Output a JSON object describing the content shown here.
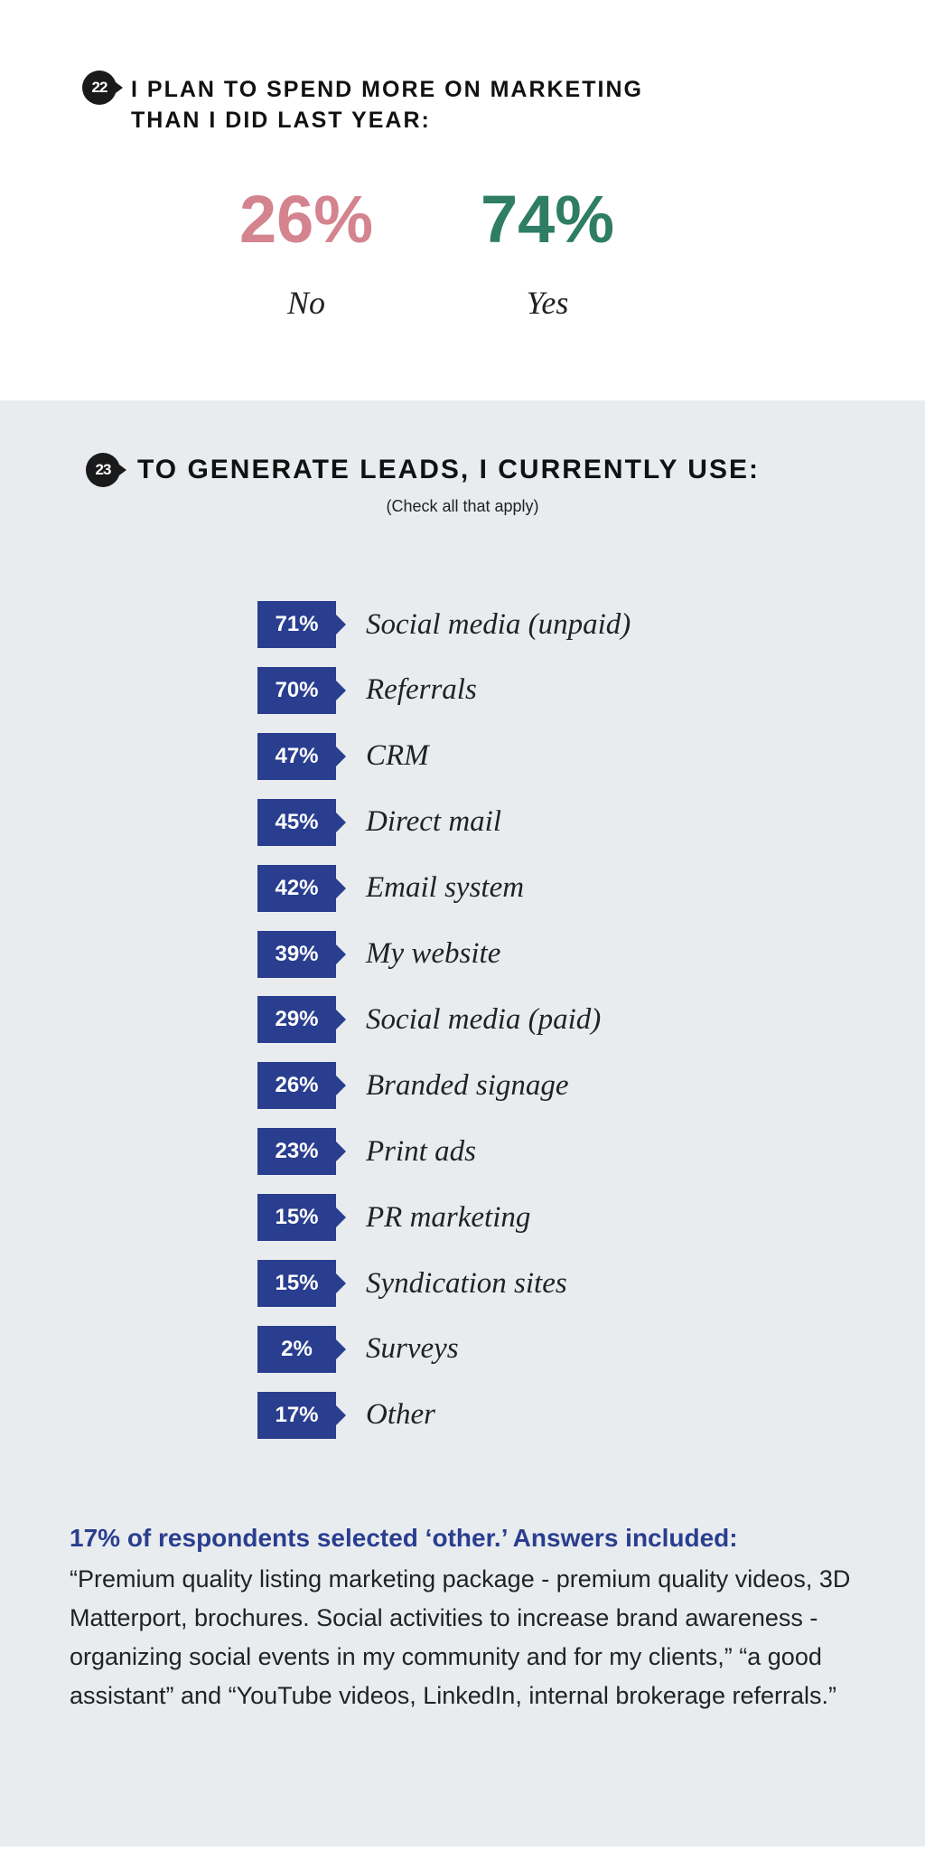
{
  "q22": {
    "number": "22",
    "title_line1": "I plan to spend more on marketing",
    "title_line2": "than I did last year:",
    "no": {
      "value": "26%",
      "label": "No",
      "color": "#d4848f"
    },
    "yes": {
      "value": "74%",
      "label": "Yes",
      "color": "#2e7d64"
    }
  },
  "q23": {
    "number": "23",
    "title": "To generate leads, I currently use:",
    "subtitle": "(Check all that apply)",
    "note_heading": "17% of respondents selected ‘other.’ Answers included:",
    "note_body": "“Premium quality listing marketing package - premium quality videos, 3D Matterport, brochures. Social activities to increase brand awareness - organizing social events in my community and for my clients,” “a good assistant” and “YouTube videos, LinkedIn, internal brokerage referrals.”"
  },
  "chart_data": [
    {
      "type": "table",
      "title": "I plan to spend more on marketing than I did last year:",
      "categories": [
        "No",
        "Yes"
      ],
      "values": [
        26,
        74
      ],
      "unit": "%"
    },
    {
      "type": "table",
      "title": "To generate leads, I currently use:",
      "subtitle": "(Check all that apply)",
      "unit": "%",
      "items": [
        {
          "value": 71,
          "label": "Social media (unpaid)",
          "text": "71%"
        },
        {
          "value": 70,
          "label": "Referrals",
          "text": "70%"
        },
        {
          "value": 47,
          "label": "CRM",
          "text": "47%"
        },
        {
          "value": 45,
          "label": "Direct mail",
          "text": "45%"
        },
        {
          "value": 42,
          "label": "Email system",
          "text": "42%"
        },
        {
          "value": 39,
          "label": "My website",
          "text": "39%"
        },
        {
          "value": 29,
          "label": "Social media (paid)",
          "text": "29%"
        },
        {
          "value": 26,
          "label": "Branded signage",
          "text": "26%"
        },
        {
          "value": 23,
          "label": "Print ads",
          "text": "23%"
        },
        {
          "value": 15,
          "label": "PR marketing",
          "text": "15%"
        },
        {
          "value": 15,
          "label": "Syndication sites",
          "text": "15%"
        },
        {
          "value": 2,
          "label": "Surveys",
          "text": "2%"
        },
        {
          "value": 17,
          "label": "Other",
          "text": "17%"
        }
      ]
    }
  ]
}
